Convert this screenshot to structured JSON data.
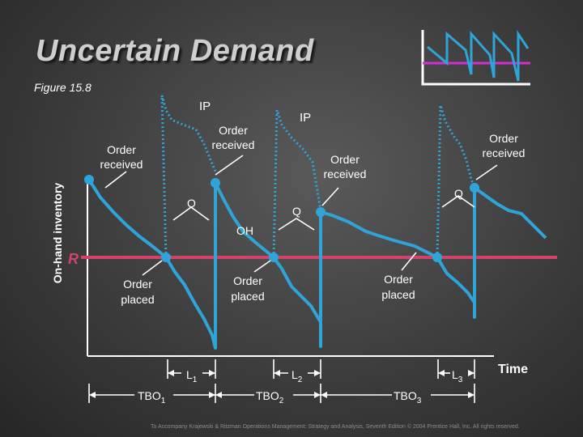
{
  "title": "Uncertain Demand",
  "figure_label": "Figure 15.8",
  "y_axis_label": "On-hand inventory",
  "x_axis_label": "Time",
  "reorder_point_label": "R",
  "labels": {
    "ip": "IP",
    "order_received": [
      "Order",
      "received"
    ],
    "order_placed": [
      "Order",
      "placed"
    ],
    "q": "Q",
    "oh": "OH",
    "l1": "L",
    "l1_sub": "1",
    "l2": "L",
    "l2_sub": "2",
    "l3": "L",
    "l3_sub": "3",
    "tbo1": "TBO",
    "tbo1_sub": "1",
    "tbo2": "TBO",
    "tbo2_sub": "2",
    "tbo3": "TBO",
    "tbo3_sub": "3"
  },
  "footer": "To Accompany Krajewski & Ritzman Operations Management: Strategy and Analysis, Seventh Edition © 2004 Prentice Hall, Inc. All rights reserved.",
  "colors": {
    "inventory_line": "#2fa4d8",
    "inventory_position": "#2fa4d8",
    "reorder_line": "#d2436b",
    "text": "#ffffff"
  },
  "icons": [
    "sawtooth-logo-icon"
  ]
}
